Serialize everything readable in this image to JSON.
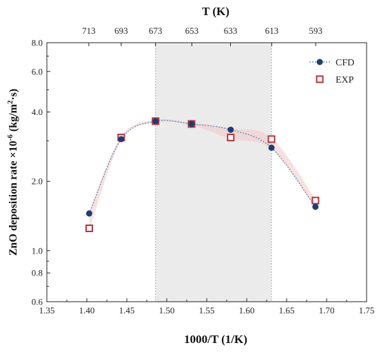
{
  "chart_data": {
    "type": "scatter",
    "title": "",
    "xlabel": "1000/T (1/K)",
    "ylabel": "ZnO deposition rate ×10",
    "ylabel_exp": "-6",
    "ylabel_unit_pre": " (kg/m",
    "ylabel_unit_exp": "2",
    "ylabel_unit_post": "·s)",
    "x2label": "T (K)",
    "xlim": [
      1.35,
      1.75
    ],
    "ylim": [
      0.6,
      8.0
    ],
    "yscale": "log",
    "xticks": [
      1.35,
      1.4,
      1.45,
      1.5,
      1.55,
      1.6,
      1.65,
      1.7,
      1.75
    ],
    "xtick_labels": [
      "1.35",
      "1.40",
      "1.45",
      "1.50",
      "1.55",
      "1.60",
      "1.65",
      "1.70",
      "1.75"
    ],
    "yticks": [
      0.6,
      0.8,
      1.0,
      2.0,
      4.0,
      6.0,
      8.0
    ],
    "ytick_labels": [
      "0.6",
      "0.8",
      "1.0",
      "2.0",
      "4.0",
      "6.0",
      "8.0"
    ],
    "top_ticks": [
      713,
      693,
      673,
      653,
      633,
      613,
      593
    ],
    "top_tick_labels": [
      "713",
      "693",
      "673",
      "653",
      "633",
      "613",
      "593"
    ],
    "shaded_region": [
      1.486,
      1.631
    ],
    "legend_position": "top-right",
    "series": [
      {
        "name": "CFD",
        "marker": "filled-circle",
        "color": "#1f3d73",
        "x": [
          1.403,
          1.443,
          1.486,
          1.531,
          1.58,
          1.631,
          1.686
        ],
        "y": [
          1.45,
          3.05,
          3.65,
          3.55,
          3.35,
          2.8,
          1.55
        ]
      },
      {
        "name": "EXP",
        "marker": "open-square",
        "color": "#b5313a",
        "x": [
          1.403,
          1.443,
          1.486,
          1.531,
          1.58,
          1.631,
          1.686
        ],
        "y": [
          1.25,
          3.1,
          3.65,
          3.55,
          3.1,
          3.05,
          1.65
        ]
      }
    ],
    "fit_line_color": "#4a86b8",
    "band_color": "#f4c6c6"
  }
}
